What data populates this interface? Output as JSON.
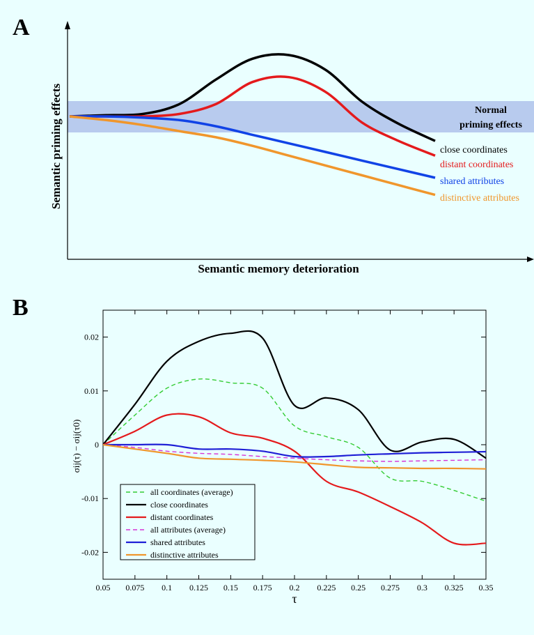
{
  "background_color": "#eaffff",
  "panel_a": {
    "letter": "A",
    "ylabel": "Semantic priming effects",
    "xlabel": "Semantic memory deterioration",
    "band_label_line1": "Normal",
    "band_label_line2": "priming effects",
    "band_color": "#b8cbee",
    "chart_data": {
      "type": "line",
      "schematic": true,
      "x": [
        0,
        0.1,
        0.2,
        0.3,
        0.4,
        0.5,
        0.6,
        0.7,
        0.8,
        0.9,
        1.0
      ],
      "series": [
        {
          "name": "close coordinates",
          "color": "#000000",
          "values": [
            0.5,
            0.51,
            0.52,
            0.6,
            0.8,
            0.97,
            1.0,
            0.88,
            0.62,
            0.44,
            0.3
          ]
        },
        {
          "name": "distant coordinates",
          "color": "#e41a1c",
          "values": [
            0.5,
            0.5,
            0.5,
            0.52,
            0.6,
            0.78,
            0.82,
            0.7,
            0.45,
            0.3,
            0.18
          ]
        },
        {
          "name": "shared attributes",
          "color": "#1143e6",
          "values": [
            0.5,
            0.5,
            0.49,
            0.47,
            0.42,
            0.35,
            0.28,
            0.21,
            0.14,
            0.07,
            0.0
          ]
        },
        {
          "name": "distinctive attributes",
          "color": "#f0962c",
          "values": [
            0.5,
            0.47,
            0.43,
            0.38,
            0.33,
            0.26,
            0.18,
            0.1,
            0.02,
            -0.06,
            -0.14
          ]
        }
      ]
    }
  },
  "panel_b": {
    "letter": "B",
    "ylabel": "σij(τ) − σij(τ0)",
    "xlabel": "τ",
    "chart_data": {
      "type": "line",
      "xlim": [
        0.05,
        0.35
      ],
      "ylim": [
        -0.025,
        0.025
      ],
      "x_ticks": [
        "0.05",
        "0.075",
        "0.1",
        "0.125",
        "0.15",
        "0.175",
        "0.2",
        "0.225",
        "0.25",
        "0.275",
        "0.3",
        "0.325",
        "0.35"
      ],
      "y_ticks": [
        "0.02",
        "0.01",
        "0",
        "-0.01",
        "-0.02"
      ],
      "y_tick_values": [
        0.02,
        0.01,
        0,
        -0.01,
        -0.02
      ],
      "legend_position": "bottom-left",
      "x": [
        0.05,
        0.075,
        0.1,
        0.125,
        0.15,
        0.175,
        0.2,
        0.225,
        0.25,
        0.275,
        0.3,
        0.325,
        0.35
      ],
      "series": [
        {
          "name": "all coordinates (average)",
          "color": "#33cc33",
          "dashed": true,
          "values": [
            0.0,
            0.0055,
            0.0105,
            0.0122,
            0.0115,
            0.0105,
            0.0035,
            0.0015,
            -0.0005,
            -0.0062,
            -0.0068,
            -0.0085,
            -0.0105
          ]
        },
        {
          "name": "close coordinates",
          "color": "#000000",
          "dashed": false,
          "values": [
            0.0,
            0.0075,
            0.0155,
            0.0192,
            0.0207,
            0.0198,
            0.0073,
            0.0087,
            0.0065,
            -0.001,
            0.0005,
            0.001,
            -0.0025
          ]
        },
        {
          "name": "distant coordinates",
          "color": "#e41a1c",
          "dashed": false,
          "values": [
            0.0,
            0.0025,
            0.0055,
            0.0052,
            0.0022,
            0.0012,
            -0.0012,
            -0.0068,
            -0.0088,
            -0.0115,
            -0.0145,
            -0.0183,
            -0.0183
          ]
        },
        {
          "name": "all attributes (average)",
          "color": "#d633d6",
          "dashed": true,
          "values": [
            0.0,
            -0.0005,
            -0.0012,
            -0.0016,
            -0.0018,
            -0.0022,
            -0.0025,
            -0.0028,
            -0.003,
            -0.0031,
            -0.003,
            -0.0029,
            -0.0028
          ]
        },
        {
          "name": "shared attributes",
          "color": "#1f1fd6",
          "dashed": false,
          "values": [
            0.0,
            0.0,
            0.0,
            -0.0008,
            -0.0008,
            -0.0012,
            -0.0022,
            -0.0022,
            -0.0019,
            -0.0017,
            -0.0015,
            -0.0014,
            -0.0013
          ]
        },
        {
          "name": "distinctive attributes",
          "color": "#f0962c",
          "dashed": false,
          "values": [
            0.0,
            -0.0008,
            -0.0016,
            -0.0025,
            -0.0027,
            -0.0029,
            -0.0032,
            -0.0037,
            -0.0042,
            -0.0043,
            -0.0044,
            -0.0044,
            -0.0045
          ]
        }
      ]
    }
  }
}
